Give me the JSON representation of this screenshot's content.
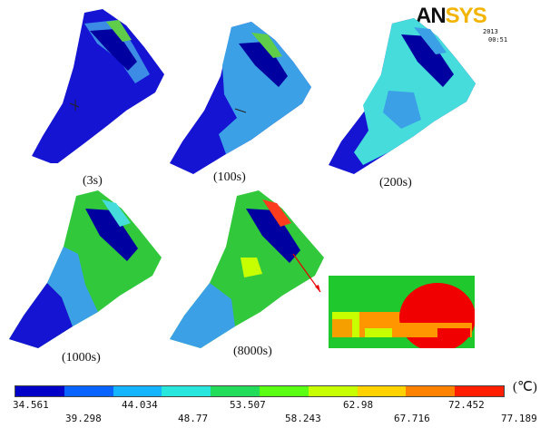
{
  "logo": {
    "part1": "AN",
    "part2": "SYS"
  },
  "header": {
    "date": "2013",
    "time": "00:51"
  },
  "captions": {
    "s3": "(3s)",
    "s100": "(100s)",
    "s200": "(200s)",
    "s1000": "(1000s)",
    "s8000": "(8000s)"
  },
  "legend": {
    "unit": "(℃)",
    "colors": [
      "#0000c8",
      "#0a64ff",
      "#14b4ff",
      "#28e6dc",
      "#23dc5a",
      "#5aff14",
      "#c8ff00",
      "#ffd200",
      "#ff8200",
      "#ff1e00"
    ],
    "upper_ticks": [
      "34.561",
      "44.034",
      "53.507",
      "62.98",
      "72.452"
    ],
    "lower_ticks": [
      "39.298",
      "48.77",
      "58.243",
      "67.716",
      "77.189"
    ]
  }
}
